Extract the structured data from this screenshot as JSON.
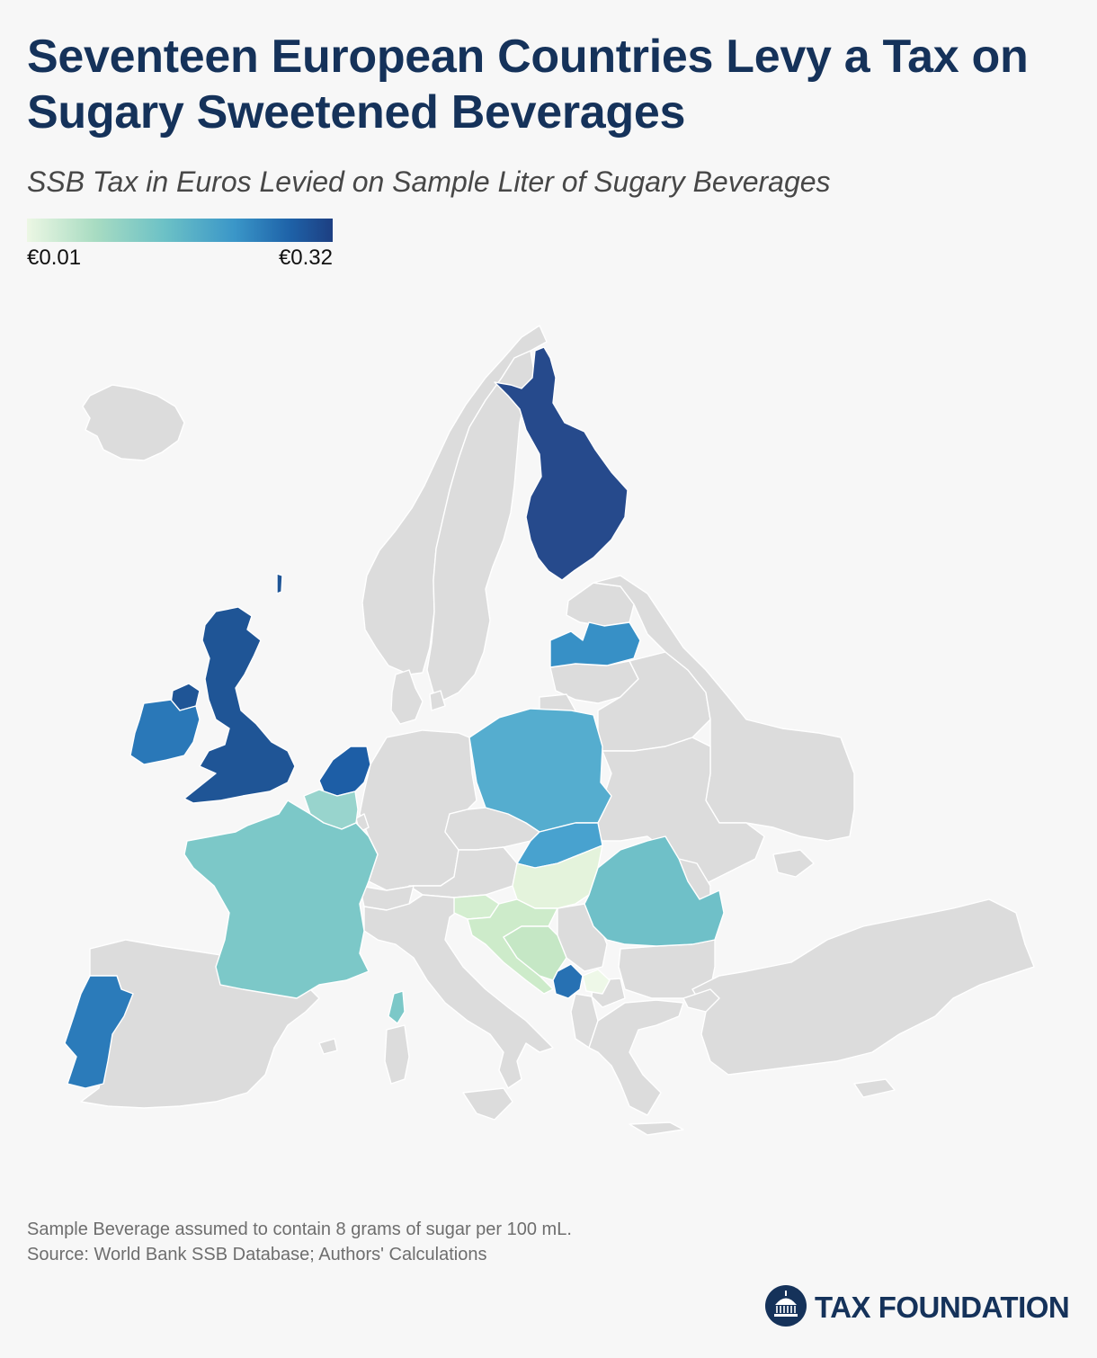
{
  "title": "Seventeen European Countries Levy a Tax on Sugary Sweetened Beverages",
  "subtitle": "SSB Tax in Euros Levied on Sample Liter of Sugary Beverages",
  "legend": {
    "min_label": "€0.01",
    "max_label": "€0.32",
    "min_value": 0.01,
    "max_value": 0.32
  },
  "colors": {
    "background": "#f7f7f7",
    "no_tax_land": "#dcdcdc",
    "border": "#ffffff",
    "title": "#15325a",
    "scale": [
      "#ecf7e4",
      "#a9dcc2",
      "#6cc1c6",
      "#3a96c8",
      "#1e62a8",
      "#1d3f82"
    ]
  },
  "map": {
    "taxed_countries": [
      {
        "name": "Finland",
        "color": "#264a8c"
      },
      {
        "name": "United Kingdom",
        "color": "#1f5596"
      },
      {
        "name": "Ireland",
        "color": "#2a78b8"
      },
      {
        "name": "Netherlands",
        "color": "#1d5ea6"
      },
      {
        "name": "Portugal",
        "color": "#2b7bba"
      },
      {
        "name": "Latvia",
        "color": "#3790c6"
      },
      {
        "name": "Poland",
        "color": "#55adcf"
      },
      {
        "name": "Slovakia",
        "color": "#48a2cf"
      },
      {
        "name": "Belgium",
        "color": "#98d4cd"
      },
      {
        "name": "France",
        "color": "#7cc8c8"
      },
      {
        "name": "Romania",
        "color": "#6fc0c8"
      },
      {
        "name": "Hungary",
        "color": "#e4f3dc"
      },
      {
        "name": "Croatia",
        "color": "#cdebca"
      },
      {
        "name": "Bosnia and Herzegovina",
        "color": "#c5e7c5"
      },
      {
        "name": "Montenegro",
        "color": "#2771b3"
      },
      {
        "name": "Serbia (Kosovo area)",
        "color": "#eef8e8"
      },
      {
        "name": "Slovenia",
        "color": "#d4eed0"
      }
    ]
  },
  "notes": [
    "Sample Beverage assumed to contain 8 grams of sugar per 100 mL.",
    "Source: World Bank SSB Database; Authors' Calculations"
  ],
  "brand": {
    "name": "TAX FOUNDATION",
    "logo_icon": "capitol-dome-icon"
  }
}
